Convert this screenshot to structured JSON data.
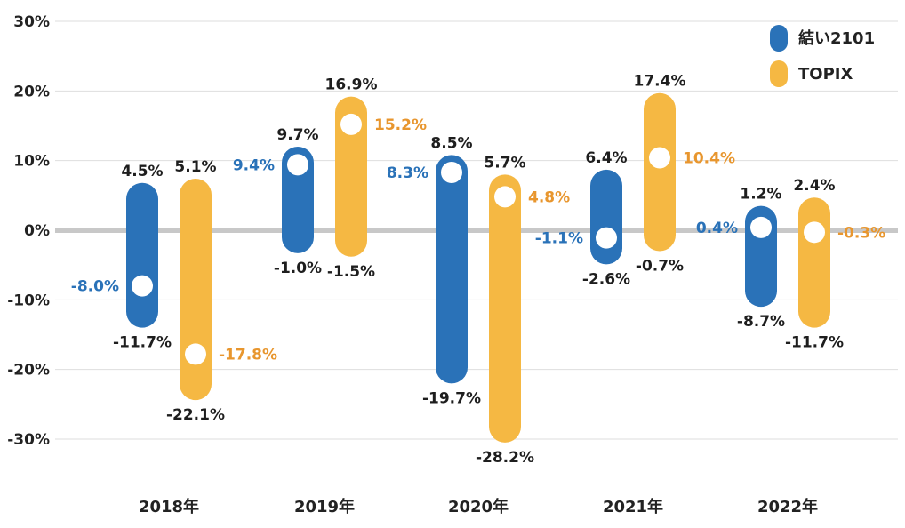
{
  "chart_data": {
    "type": "range",
    "categories": [
      "2018年",
      "2019年",
      "2020年",
      "2021年",
      "2022年"
    ],
    "y_ticks": [
      "30%",
      "20%",
      "10%",
      "0%",
      "-10%",
      "-20%",
      "-30%"
    ],
    "ylim": [
      -30,
      30
    ],
    "grid": true,
    "legend_position": "top-right",
    "series": [
      {
        "name": "結い2101",
        "color": "#2a72b8",
        "high": [
          4.5,
          9.7,
          8.5,
          6.4,
          1.2
        ],
        "low": [
          -11.7,
          -1.0,
          -19.7,
          -2.6,
          -8.7
        ],
        "annual": [
          -8.0,
          9.4,
          8.3,
          -1.1,
          0.4
        ],
        "high_labels": [
          "4.5%",
          "9.7%",
          "8.5%",
          "6.4%",
          "1.2%"
        ],
        "low_labels": [
          "-11.7%",
          "-1.0%",
          "-19.7%",
          "-2.6%",
          "-8.7%"
        ],
        "annual_labels": [
          "-8.0%",
          "9.4%",
          "8.3%",
          "-1.1%",
          "0.4%"
        ]
      },
      {
        "name": "TOPIX",
        "color": "#f5b843",
        "high": [
          5.1,
          16.9,
          5.7,
          17.4,
          2.4
        ],
        "low": [
          -22.1,
          -1.5,
          -28.2,
          -0.7,
          -11.7
        ],
        "annual": [
          -17.8,
          15.2,
          4.8,
          10.4,
          -0.3
        ],
        "high_labels": [
          "5.1%",
          "16.9%",
          "5.7%",
          "17.4%",
          "2.4%"
        ],
        "low_labels": [
          "-22.1%",
          "-1.5%",
          "-28.2%",
          "-0.7%",
          "-11.7%"
        ],
        "annual_labels": [
          "-17.8%",
          "15.2%",
          "4.8%",
          "10.4%",
          "-0.3%"
        ]
      }
    ]
  }
}
